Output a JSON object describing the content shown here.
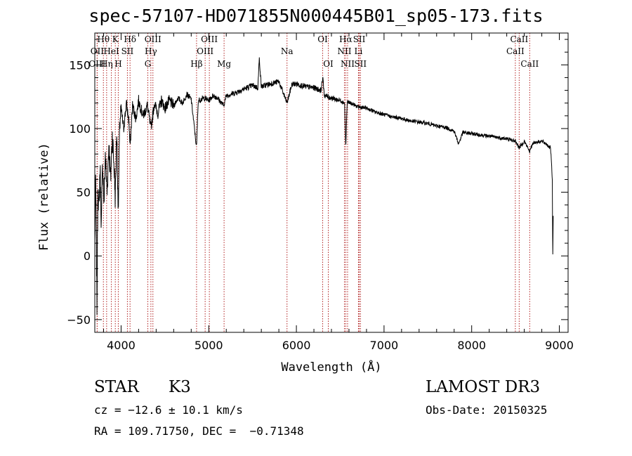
{
  "header": {
    "title": "spec-57107-HD071855N000445B01_sp05-173.fits"
  },
  "info": {
    "class": "STAR",
    "subclass": "K3",
    "survey": "LAMOST DR3",
    "cz": "cz = −12.6 ± 10.1 km/s",
    "obs_date": "Obs-Date: 20150325",
    "coords": "RA = 109.71750, DEC =  −0.71348"
  },
  "colors": {
    "spectrum": "#000000",
    "line_marker": "#b22222",
    "axes": "#000000"
  },
  "chart_data": {
    "type": "line",
    "title": "spec-57107-HD071855N000445B01_sp05-173.fits",
    "xlabel": "Wavelength (Å)",
    "ylabel": "Flux (relative)",
    "xlim": [
      3700,
      9100
    ],
    "ylim": [
      -60,
      175
    ],
    "x_ticks": [
      4000,
      5000,
      6000,
      7000,
      8000,
      9000
    ],
    "x_minor_step": 200,
    "y_ticks": [
      -50,
      0,
      50,
      100,
      150
    ],
    "y_minor_step": 10,
    "spectrum_anchors": [
      [
        3700,
        10
      ],
      [
        3710,
        60
      ],
      [
        3725,
        -40
      ],
      [
        3735,
        55
      ],
      [
        3745,
        35
      ],
      [
        3760,
        70
      ],
      [
        3775,
        25
      ],
      [
        3790,
        75
      ],
      [
        3805,
        40
      ],
      [
        3820,
        80
      ],
      [
        3840,
        50
      ],
      [
        3860,
        88
      ],
      [
        3880,
        60
      ],
      [
        3900,
        95
      ],
      [
        3920,
        70
      ],
      [
        3934,
        45
      ],
      [
        3950,
        100
      ],
      [
        3968,
        35
      ],
      [
        3985,
        105
      ],
      [
        4000,
        115
      ],
      [
        4030,
        100
      ],
      [
        4060,
        120
      ],
      [
        4090,
        105
      ],
      [
        4102,
        85
      ],
      [
        4130,
        118
      ],
      [
        4170,
        108
      ],
      [
        4200,
        122
      ],
      [
        4250,
        110
      ],
      [
        4300,
        118
      ],
      [
        4340,
        100
      ],
      [
        4380,
        120
      ],
      [
        4420,
        112
      ],
      [
        4460,
        122
      ],
      [
        4500,
        116
      ],
      [
        4550,
        122
      ],
      [
        4600,
        118
      ],
      [
        4650,
        124
      ],
      [
        4700,
        120
      ],
      [
        4750,
        127
      ],
      [
        4800,
        123
      ],
      [
        4861,
        85
      ],
      [
        4880,
        122
      ],
      [
        4950,
        124
      ],
      [
        5000,
        122
      ],
      [
        5050,
        126
      ],
      [
        5100,
        124
      ],
      [
        5170,
        118
      ],
      [
        5200,
        126
      ],
      [
        5300,
        128
      ],
      [
        5400,
        131
      ],
      [
        5500,
        134
      ],
      [
        5560,
        132
      ],
      [
        5577,
        155
      ],
      [
        5600,
        133
      ],
      [
        5700,
        135
      ],
      [
        5800,
        137
      ],
      [
        5893,
        120
      ],
      [
        5950,
        135
      ],
      [
        6000,
        135
      ],
      [
        6100,
        133
      ],
      [
        6200,
        132
      ],
      [
        6280,
        130
      ],
      [
        6300,
        140
      ],
      [
        6320,
        126
      ],
      [
        6400,
        124
      ],
      [
        6500,
        122
      ],
      [
        6550,
        120
      ],
      [
        6563,
        85
      ],
      [
        6580,
        121
      ],
      [
        6650,
        119
      ],
      [
        6700,
        117
      ],
      [
        6800,
        116
      ],
      [
        6900,
        113
      ],
      [
        7000,
        111
      ],
      [
        7100,
        109
      ],
      [
        7200,
        108
      ],
      [
        7300,
        106
      ],
      [
        7400,
        105
      ],
      [
        7500,
        104
      ],
      [
        7600,
        102
      ],
      [
        7700,
        101
      ],
      [
        7800,
        98
      ],
      [
        7850,
        88
      ],
      [
        7900,
        97
      ],
      [
        8000,
        96
      ],
      [
        8100,
        95
      ],
      [
        8200,
        94
      ],
      [
        8300,
        93
      ],
      [
        8400,
        92
      ],
      [
        8500,
        90
      ],
      [
        8542,
        85
      ],
      [
        8600,
        90
      ],
      [
        8662,
        82
      ],
      [
        8700,
        89
      ],
      [
        8800,
        90
      ],
      [
        8850,
        88
      ],
      [
        8900,
        85
      ],
      [
        8920,
        60
      ],
      [
        8925,
        0
      ],
      [
        8930,
        30
      ]
    ],
    "line_markers": [
      {
        "label": "Hθ",
        "wavelength": 3798,
        "row": 0
      },
      {
        "label": "OII",
        "wavelength": 3727,
        "row": 1
      },
      {
        "label": "OIII",
        "wavelength": 3727,
        "row": 2
      },
      {
        "label": "Hη",
        "wavelength": 3835,
        "row": 2
      },
      {
        "label": "K",
        "wavelength": 3934,
        "row": 0
      },
      {
        "label": "HeI",
        "wavelength": 3889,
        "row": 1
      },
      {
        "label": "H",
        "wavelength": 3968,
        "row": 2
      },
      {
        "label": "Hδ",
        "wavelength": 4102,
        "row": 0
      },
      {
        "label": "SII",
        "wavelength": 4072,
        "row": 1
      },
      {
        "label": "OIII",
        "wavelength": 4363,
        "row": 0
      },
      {
        "label": "Hγ",
        "wavelength": 4340,
        "row": 1
      },
      {
        "label": "G",
        "wavelength": 4305,
        "row": 2
      },
      {
        "label": "OIII",
        "wavelength": 5007,
        "row": 0
      },
      {
        "label": "OIII",
        "wavelength": 4959,
        "row": 1
      },
      {
        "label": "Hβ",
        "wavelength": 4861,
        "row": 2
      },
      {
        "label": "Mg",
        "wavelength": 5175,
        "row": 2
      },
      {
        "label": "Na",
        "wavelength": 5893,
        "row": 1
      },
      {
        "label": "OI",
        "wavelength": 6300,
        "row": 0
      },
      {
        "label": "OI",
        "wavelength": 6364,
        "row": 2
      },
      {
        "label": "Hα",
        "wavelength": 6563,
        "row": 0
      },
      {
        "label": "SII",
        "wavelength": 6717,
        "row": 0
      },
      {
        "label": "NII",
        "wavelength": 6548,
        "row": 1
      },
      {
        "label": "Li",
        "wavelength": 6708,
        "row": 1
      },
      {
        "label": "NII",
        "wavelength": 6584,
        "row": 2
      },
      {
        "label": "SII",
        "wavelength": 6731,
        "row": 2
      },
      {
        "label": "CaII",
        "wavelength": 8542,
        "row": 0
      },
      {
        "label": "CaII",
        "wavelength": 8498,
        "row": 1
      },
      {
        "label": "CaII",
        "wavelength": 8662,
        "row": 2
      }
    ]
  }
}
